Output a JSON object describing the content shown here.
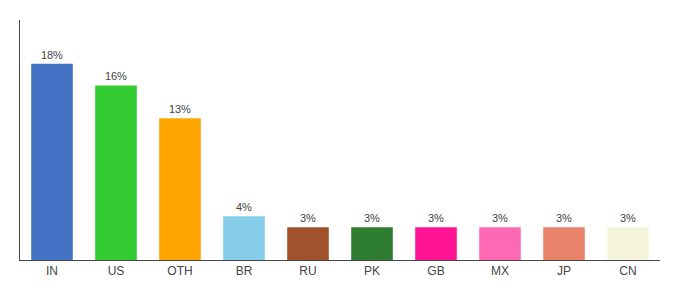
{
  "chart_data": {
    "type": "bar",
    "categories": [
      "IN",
      "US",
      "OTH",
      "BR",
      "RU",
      "PK",
      "GB",
      "MX",
      "JP",
      "CN"
    ],
    "values": [
      18,
      16,
      13,
      4,
      3,
      3,
      3,
      3,
      3,
      3
    ],
    "value_labels": [
      "18%",
      "16%",
      "13%",
      "4%",
      "3%",
      "3%",
      "3%",
      "3%",
      "3%",
      "3%"
    ],
    "colors": [
      "#4472C4",
      "#33CC33",
      "#FFA500",
      "#87CEEB",
      "#A0522D",
      "#2E7D32",
      "#FF1493",
      "#FF69B4",
      "#E8836A",
      "#F5F5DC"
    ],
    "ylim": [
      0,
      22
    ],
    "data_labels": true,
    "tick_labels": "x",
    "grid": false
  }
}
